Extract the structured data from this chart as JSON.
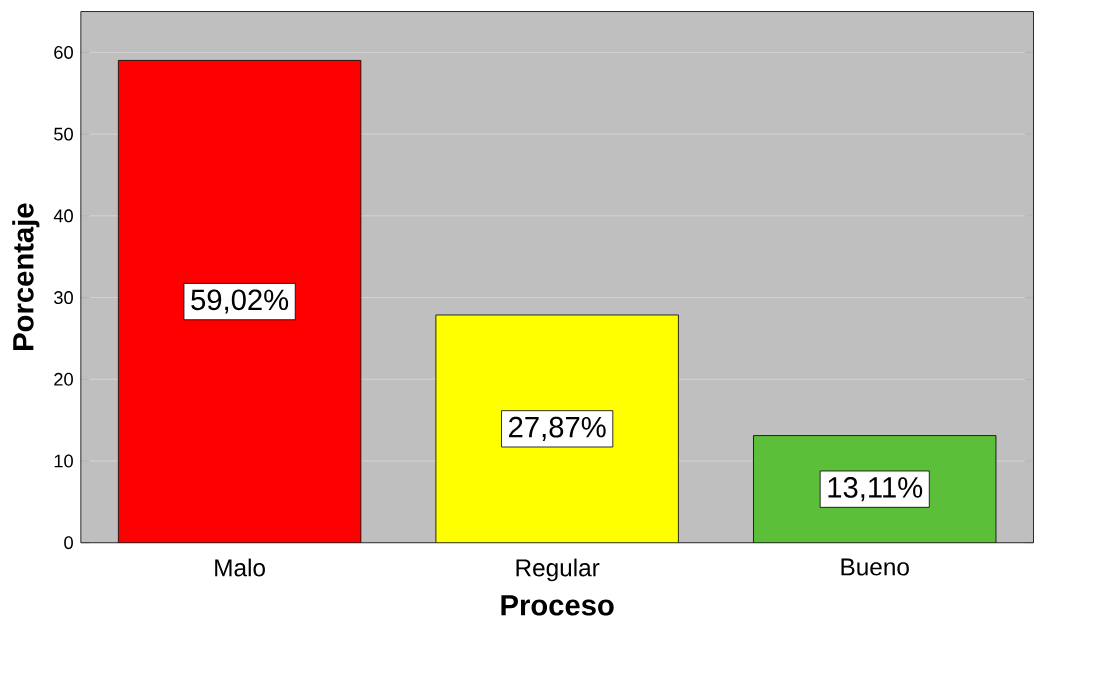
{
  "chart_data": {
    "type": "bar",
    "xlabel": "Proceso",
    "ylabel": "Porcentaje",
    "categories": [
      "Malo",
      "Regular",
      "Bueno"
    ],
    "values": [
      59.02,
      27.87,
      13.11
    ],
    "colors": [
      "#ff0000",
      "#ffff00",
      "#5cbf3a"
    ],
    "value_labels": [
      "59,02%",
      "27,87%",
      "13,11%"
    ],
    "ylim": [
      0,
      65
    ],
    "yticks": [
      0,
      10,
      20,
      30,
      40,
      50,
      60
    ],
    "grid": "y"
  }
}
